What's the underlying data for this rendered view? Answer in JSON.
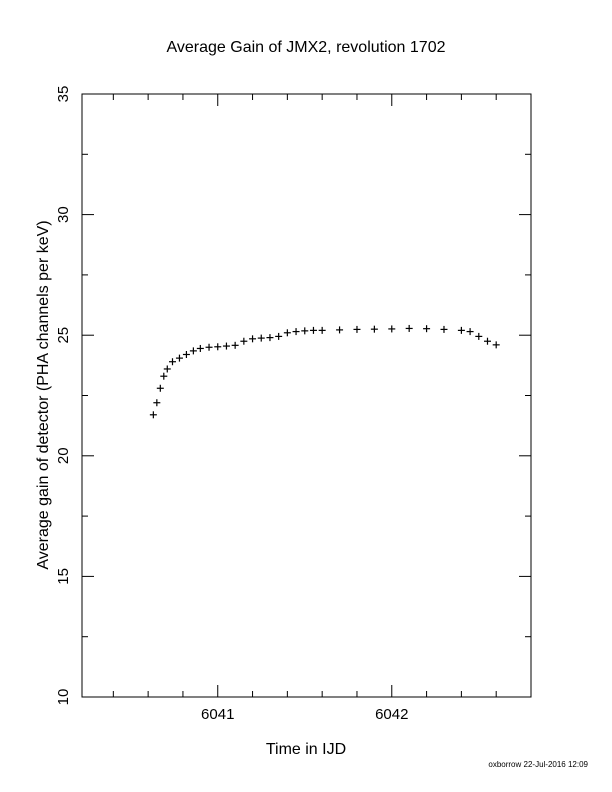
{
  "chart_data": {
    "type": "scatter",
    "title": "Average Gain of JMX2, revolution 1702",
    "xlabel": "Time in IJD",
    "ylabel": "Average gain of detector (PHA channels per keV)",
    "xlim": [
      6040.22,
      6042.8
    ],
    "ylim": [
      10,
      35
    ],
    "xticks": [
      6041,
      6042
    ],
    "xtick_labels": [
      "6041",
      "6042"
    ],
    "yticks": [
      10,
      15,
      20,
      25,
      30,
      35
    ],
    "ytick_labels": [
      "10",
      "15",
      "20",
      "25",
      "30",
      "35"
    ],
    "marker": "plus",
    "grid": false,
    "series": [
      {
        "color": "#000000",
        "x": [
          6040.63,
          6040.65,
          6040.67,
          6040.69,
          6040.71,
          6040.74,
          6040.78,
          6040.82,
          6040.86,
          6040.9,
          6040.95,
          6041.0,
          6041.05,
          6041.1,
          6041.15,
          6041.2,
          6041.25,
          6041.3,
          6041.35,
          6041.4,
          6041.45,
          6041.5,
          6041.55,
          6041.6,
          6041.7,
          6041.8,
          6041.9,
          6042.0,
          6042.1,
          6042.2,
          6042.3,
          6042.4,
          6042.45,
          6042.5,
          6042.55,
          6042.6
        ],
        "y": [
          21.7,
          22.2,
          22.8,
          23.3,
          23.6,
          23.9,
          24.05,
          24.2,
          24.35,
          24.45,
          24.5,
          24.52,
          24.55,
          24.58,
          24.75,
          24.85,
          24.88,
          24.9,
          24.95,
          25.1,
          25.15,
          25.18,
          25.2,
          25.2,
          25.22,
          25.24,
          25.25,
          25.26,
          25.28,
          25.27,
          25.24,
          25.2,
          25.15,
          24.95,
          24.75,
          24.6
        ]
      }
    ]
  },
  "footer": {
    "credit": "oxborrow 22-Jul-2016 12:09"
  }
}
